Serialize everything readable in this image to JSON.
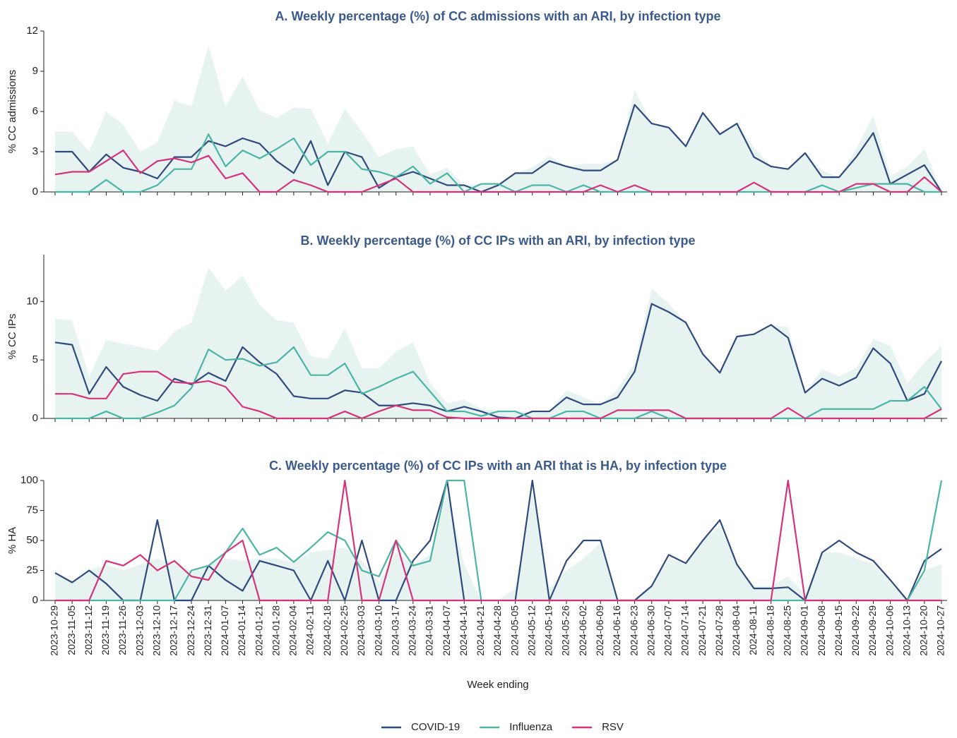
{
  "chart_data": [
    {
      "type": "line",
      "title": "A. Weekly percentage (%) of CC admissions with an ARI, by infection type",
      "ylabel": "% CC admissions",
      "ylim": [
        0,
        12
      ],
      "yticks": [
        0,
        3,
        6,
        9,
        12
      ],
      "area": {
        "color": "#e6f3f1",
        "values": [
          4.5,
          4.5,
          3.0,
          6.0,
          5.0,
          3.0,
          3.7,
          6.8,
          6.4,
          10.9,
          6.4,
          8.6,
          6.1,
          5.5,
          6.3,
          6.2,
          3.6,
          6.2,
          4.5,
          2.6,
          3.2,
          3.4,
          1.3,
          1.8,
          0.5,
          0.6,
          0.5,
          1.4,
          1.8,
          2.7,
          1.9,
          2.1,
          2.1,
          2.4,
          7.6,
          5.1,
          4.8,
          3.4,
          5.9,
          4.3,
          5.1,
          3.3,
          1.9,
          1.7,
          2.9,
          1.6,
          1.1,
          3.2,
          5.7,
          1.2,
          1.9,
          3.2,
          0
        ]
      },
      "series": [
        {
          "color": "#2e4a7d",
          "values": [
            3.0,
            3.0,
            1.5,
            2.8,
            1.8,
            1.5,
            1.0,
            2.6,
            2.6,
            3.8,
            3.4,
            4.0,
            3.6,
            2.3,
            1.4,
            3.8,
            0.5,
            3.0,
            2.6,
            0.3,
            1.1,
            1.5,
            1.0,
            0.5,
            0.5,
            0.0,
            0.5,
            1.4,
            1.4,
            2.3,
            1.9,
            1.6,
            1.6,
            2.4,
            6.5,
            5.1,
            4.8,
            3.4,
            5.9,
            4.3,
            5.1,
            2.6,
            1.9,
            1.7,
            2.9,
            1.1,
            1.1,
            2.6,
            4.4,
            0.6,
            1.3,
            2.0,
            0
          ]
        },
        {
          "color": "#4bb5a5",
          "values": [
            0,
            0,
            0,
            0.9,
            0,
            0,
            0.5,
            1.7,
            1.7,
            4.3,
            1.9,
            3.1,
            2.5,
            3.2,
            4.0,
            2.0,
            3.0,
            3.0,
            1.7,
            1.5,
            1.1,
            1.9,
            0.6,
            1.4,
            0,
            0.6,
            0.6,
            0,
            0.5,
            0.5,
            0,
            0.5,
            0,
            0,
            0,
            0,
            0,
            0,
            0,
            0,
            0,
            0,
            0,
            0,
            0,
            0.5,
            0,
            0.3,
            0.6,
            0.6,
            0.6,
            0,
            0
          ]
        },
        {
          "color": "#d6327a",
          "values": [
            1.3,
            1.5,
            1.5,
            2.3,
            3.1,
            1.4,
            2.3,
            2.5,
            2.2,
            2.7,
            1.0,
            1.4,
            0,
            0,
            0.9,
            0.5,
            0,
            0,
            0,
            0.5,
            1.0,
            0,
            0,
            0,
            0,
            0,
            0,
            0,
            0,
            0,
            0,
            0,
            0.5,
            0,
            0.5,
            0,
            0,
            0,
            0,
            0,
            0,
            0.7,
            0,
            0,
            0,
            0,
            0,
            0.6,
            0.6,
            0,
            0,
            1.1,
            0
          ]
        }
      ]
    },
    {
      "type": "line",
      "title": "B. Weekly percentage (%) of CC IPs with an ARI, by infection type",
      "ylabel": "% CC IPs",
      "ylim": [
        0,
        14
      ],
      "yticks": [
        0,
        5,
        10
      ],
      "area": {
        "color": "#e6f3f1",
        "values": [
          8.5,
          8.4,
          3.6,
          6.7,
          6.4,
          6.1,
          5.8,
          7.4,
          8.2,
          12.9,
          10.9,
          12.2,
          9.7,
          8.4,
          8.2,
          5.3,
          5.1,
          7.7,
          4.3,
          4.3,
          5.7,
          6.5,
          3.0,
          1.3,
          1.6,
          0.8,
          0.7,
          0.6,
          0.6,
          0.6,
          2.4,
          1.8,
          1.2,
          2.5,
          4.7,
          11.1,
          9.8,
          8.2,
          5.5,
          3.9,
          7.0,
          7.2,
          8.0,
          7.8,
          2.2,
          4.2,
          3.6,
          4.3,
          6.8,
          6.2,
          3.0,
          4.8,
          6.2
        ]
      },
      "series": [
        {
          "color": "#2e4a7d",
          "values": [
            6.5,
            6.3,
            2.1,
            4.4,
            2.7,
            2.0,
            1.5,
            3.4,
            2.9,
            3.9,
            3.2,
            6.1,
            4.8,
            3.8,
            1.9,
            1.7,
            1.7,
            2.4,
            2.2,
            1.1,
            1.1,
            1.3,
            1.1,
            0.6,
            1.0,
            0.6,
            0.1,
            0,
            0.6,
            0.6,
            1.8,
            1.2,
            1.2,
            1.8,
            4.0,
            9.8,
            9.1,
            8.2,
            5.5,
            3.9,
            7.0,
            7.2,
            8.0,
            6.9,
            2.2,
            3.4,
            2.8,
            3.5,
            6.0,
            4.7,
            1.5,
            2.1,
            4.9
          ]
        },
        {
          "color": "#4bb5a5",
          "values": [
            0,
            0,
            0,
            0.6,
            0,
            0,
            0.5,
            1.1,
            2.6,
            5.9,
            5.0,
            5.1,
            4.5,
            4.8,
            6.1,
            3.7,
            3.7,
            4.7,
            2.1,
            2.7,
            3.4,
            4.0,
            2.3,
            0.6,
            0.6,
            0.2,
            0.6,
            0.6,
            0,
            0,
            0.6,
            0.6,
            0,
            0,
            0,
            0.6,
            0,
            0,
            0,
            0,
            0,
            0,
            0,
            0,
            0,
            0.8,
            0.8,
            0.8,
            0.8,
            1.5,
            1.5,
            2.7,
            0.8
          ]
        },
        {
          "color": "#d6327a",
          "values": [
            2.1,
            2.1,
            1.7,
            1.7,
            3.8,
            4.0,
            4.0,
            3.1,
            3.0,
            3.2,
            2.7,
            1.0,
            0.6,
            0,
            0,
            0,
            0,
            0.6,
            0,
            0.6,
            1.1,
            0.7,
            0.7,
            0.1,
            0,
            0,
            0,
            0,
            0,
            0,
            0,
            0,
            0,
            0.7,
            0.7,
            0.7,
            0.7,
            0,
            0,
            0,
            0,
            0,
            0,
            0.9,
            0,
            0,
            0,
            0,
            0,
            0,
            0,
            0,
            0.8
          ]
        }
      ]
    },
    {
      "type": "line",
      "title": "C. Weekly percentage (%) of CC IPs with an ARI that is HA, by infection type",
      "ylabel": "% HA",
      "xlabel": "Week ending",
      "categories": [
        "2023-10-29",
        "2023-11-05",
        "2023-11-12",
        "2023-11-19",
        "2023-11-26",
        "2023-12-03",
        "2023-12-10",
        "2023-12-17",
        "2023-12-24",
        "2023-12-31",
        "2024-01-07",
        "2024-01-14",
        "2024-01-21",
        "2024-01-28",
        "2024-02-04",
        "2024-02-11",
        "2024-02-18",
        "2024-02-25",
        "2024-03-03",
        "2024-03-10",
        "2024-03-17",
        "2024-03-24",
        "2024-03-31",
        "2024-04-07",
        "2024-04-14",
        "2024-04-21",
        "2024-04-28",
        "2024-05-05",
        "2024-05-12",
        "2024-05-19",
        "2024-05-26",
        "2024-06-02",
        "2024-06-09",
        "2024-06-16",
        "2024-06-23",
        "2024-06-30",
        "2024-07-07",
        "2024-07-14",
        "2024-07-21",
        "2024-07-28",
        "2024-08-04",
        "2024-08-11",
        "2024-08-18",
        "2024-08-25",
        "2024-09-01",
        "2024-09-08",
        "2024-09-15",
        "2024-09-22",
        "2024-09-29",
        "2024-10-06",
        "2024-10-13",
        "2024-10-20",
        "2024-10-27"
      ],
      "ylim": [
        0,
        100
      ],
      "yticks": [
        0,
        25,
        50,
        75,
        100
      ],
      "legend": "bottom",
      "area": {
        "color": "#e6f3f1",
        "values": [
          22,
          15,
          25,
          30,
          25,
          30,
          35,
          30,
          25,
          30,
          35,
          33,
          35,
          35,
          32,
          40,
          42,
          44,
          33,
          15,
          40,
          30,
          38,
          90,
          30,
          0,
          0,
          10,
          90,
          10,
          25,
          35,
          48,
          0,
          0,
          12,
          35,
          31,
          50,
          62,
          30,
          12,
          12,
          20,
          5,
          40,
          40,
          35,
          30,
          15,
          0,
          25,
          30
        ]
      },
      "series": [
        {
          "name": "COVID-19",
          "color": "#2e4a7d",
          "values": [
            23,
            15,
            25,
            14,
            0,
            0,
            67,
            0,
            0,
            29,
            17,
            8,
            33,
            29,
            25,
            0,
            33,
            0,
            50,
            0,
            0,
            33,
            50,
            100,
            0,
            null,
            null,
            0,
            100,
            0,
            33,
            50,
            50,
            0,
            0,
            12,
            38,
            31,
            50,
            67,
            30,
            10,
            10,
            11,
            0,
            40,
            50,
            40,
            33,
            17,
            0,
            33,
            43
          ]
        },
        {
          "name": "Influenza",
          "color": "#4bb5a5",
          "values": [
            0,
            0,
            0,
            0,
            0,
            0,
            0,
            0,
            25,
            29,
            40,
            60,
            38,
            44,
            32,
            44,
            57,
            50,
            25,
            20,
            50,
            29,
            33,
            100,
            100,
            0,
            null,
            null,
            0,
            0,
            0,
            0,
            0,
            0,
            0,
            0,
            0,
            0,
            0,
            0,
            0,
            0,
            0,
            0,
            0,
            0,
            0,
            0,
            0,
            0,
            0,
            25,
            100
          ]
        },
        {
          "name": "RSV",
          "color": "#d6327a",
          "values": [
            0,
            0,
            0,
            33,
            29,
            38,
            25,
            33,
            20,
            17,
            40,
            50,
            0,
            0,
            0,
            0,
            0,
            100,
            0,
            0,
            50,
            0,
            0,
            0,
            0,
            0,
            0,
            0,
            0,
            0,
            0,
            0,
            0,
            0,
            0,
            0,
            0,
            0,
            0,
            0,
            0,
            0,
            0,
            100,
            0,
            0,
            0,
            0,
            0,
            0,
            0,
            0,
            0
          ]
        }
      ]
    }
  ]
}
